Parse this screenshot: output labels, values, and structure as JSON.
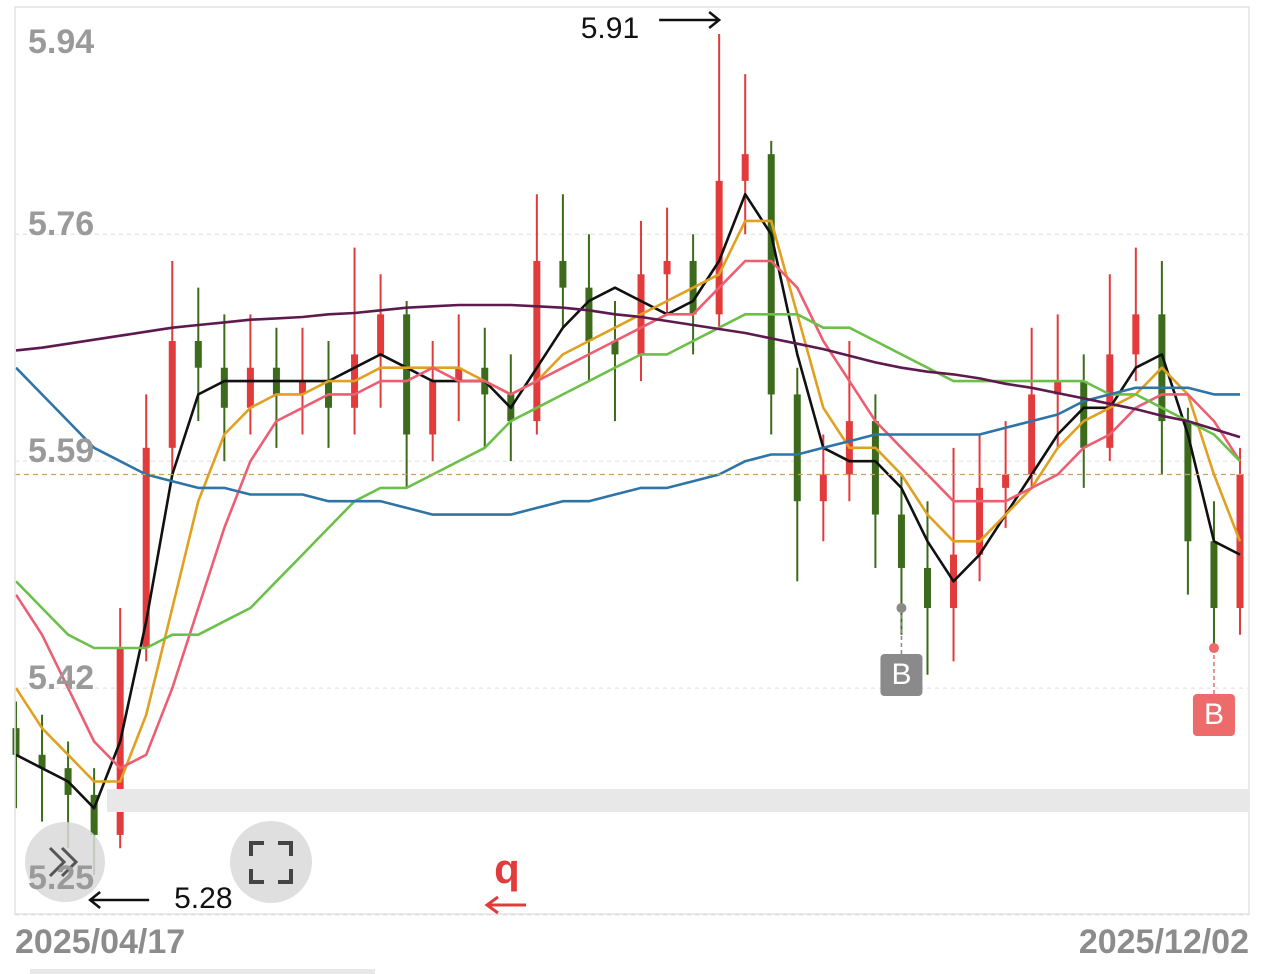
{
  "chart_data": {
    "type": "candlestick",
    "categories": [
      "2025/04/17",
      null,
      null,
      null,
      null,
      null,
      null,
      null,
      null,
      null,
      null,
      null,
      null,
      null,
      null,
      null,
      null,
      null,
      null,
      null,
      null,
      null,
      null,
      null,
      null,
      null,
      null,
      null,
      null,
      null,
      null,
      null,
      null,
      null,
      null,
      null,
      null,
      null,
      null,
      null,
      null,
      null,
      null,
      null,
      null,
      null,
      null,
      "2025/12/02"
    ],
    "open": [
      5.39,
      5.37,
      5.36,
      5.34,
      5.31,
      5.45,
      5.6,
      5.68,
      5.66,
      5.63,
      5.66,
      5.64,
      5.65,
      5.63,
      5.67,
      5.7,
      5.61,
      5.65,
      5.66,
      5.64,
      5.62,
      5.74,
      5.72,
      5.68,
      5.67,
      5.73,
      5.74,
      5.7,
      5.8,
      5.82,
      5.64,
      5.56,
      5.58,
      5.62,
      5.55,
      5.51,
      5.48,
      5.52,
      5.57,
      5.58,
      5.64,
      5.65,
      5.6,
      5.67,
      5.7,
      5.62,
      5.53,
      5.48
    ],
    "high": [
      5.41,
      5.4,
      5.38,
      5.36,
      5.48,
      5.64,
      5.74,
      5.72,
      5.7,
      5.7,
      5.69,
      5.69,
      5.68,
      5.75,
      5.73,
      5.71,
      5.68,
      5.7,
      5.69,
      5.67,
      5.79,
      5.79,
      5.76,
      5.71,
      5.77,
      5.78,
      5.76,
      5.91,
      5.88,
      5.83,
      5.66,
      5.61,
      5.68,
      5.64,
      5.58,
      5.56,
      5.6,
      5.61,
      5.62,
      5.69,
      5.7,
      5.67,
      5.73,
      5.75,
      5.74,
      5.63,
      5.56,
      5.6
    ],
    "low": [
      5.33,
      5.32,
      5.3,
      5.28,
      5.3,
      5.44,
      5.58,
      5.62,
      5.59,
      5.61,
      5.6,
      5.61,
      5.6,
      5.61,
      5.63,
      5.57,
      5.59,
      5.62,
      5.6,
      5.59,
      5.61,
      5.69,
      5.65,
      5.62,
      5.65,
      5.7,
      5.67,
      5.69,
      5.76,
      5.61,
      5.5,
      5.53,
      5.56,
      5.51,
      5.46,
      5.43,
      5.44,
      5.5,
      5.54,
      5.57,
      5.6,
      5.57,
      5.59,
      5.65,
      5.58,
      5.49,
      5.45,
      5.46
    ],
    "close": [
      5.37,
      5.36,
      5.34,
      5.31,
      5.45,
      5.6,
      5.68,
      5.66,
      5.63,
      5.66,
      5.64,
      5.65,
      5.63,
      5.67,
      5.7,
      5.61,
      5.65,
      5.66,
      5.64,
      5.62,
      5.74,
      5.72,
      5.68,
      5.67,
      5.73,
      5.74,
      5.7,
      5.8,
      5.82,
      5.64,
      5.56,
      5.58,
      5.62,
      5.55,
      5.51,
      5.48,
      5.52,
      5.57,
      5.58,
      5.64,
      5.65,
      5.6,
      5.67,
      5.7,
      5.62,
      5.53,
      5.48,
      5.58
    ],
    "up_color": "#e23b3b",
    "down_color": "#3c6b1c",
    "series": [
      {
        "color": "#111111",
        "values": [
          5.37,
          5.36,
          5.35,
          5.33,
          5.38,
          5.47,
          5.58,
          5.64,
          5.65,
          5.65,
          5.65,
          5.65,
          5.65,
          5.66,
          5.67,
          5.66,
          5.65,
          5.65,
          5.65,
          5.63,
          5.66,
          5.69,
          5.71,
          5.72,
          5.71,
          5.7,
          5.71,
          5.74,
          5.79,
          5.76,
          5.67,
          5.6,
          5.59,
          5.59,
          5.57,
          5.53,
          5.5,
          5.52,
          5.55,
          5.58,
          5.61,
          5.63,
          5.63,
          5.66,
          5.67,
          5.61,
          5.53,
          5.52
        ]
      },
      {
        "color": "#e0a020",
        "values": [
          5.42,
          5.39,
          5.37,
          5.35,
          5.35,
          5.4,
          5.48,
          5.56,
          5.61,
          5.63,
          5.64,
          5.64,
          5.65,
          5.65,
          5.66,
          5.66,
          5.66,
          5.66,
          5.65,
          5.64,
          5.65,
          5.67,
          5.68,
          5.69,
          5.7,
          5.71,
          5.72,
          5.73,
          5.77,
          5.77,
          5.7,
          5.63,
          5.6,
          5.6,
          5.58,
          5.55,
          5.53,
          5.53,
          5.55,
          5.57,
          5.6,
          5.62,
          5.63,
          5.64,
          5.66,
          5.64,
          5.58,
          5.53
        ]
      },
      {
        "color": "#ec5f72",
        "values": [
          5.49,
          5.46,
          5.42,
          5.38,
          5.36,
          5.37,
          5.42,
          5.48,
          5.54,
          5.59,
          5.62,
          5.63,
          5.64,
          5.64,
          5.65,
          5.65,
          5.66,
          5.65,
          5.65,
          5.64,
          5.65,
          5.66,
          5.67,
          5.68,
          5.69,
          5.7,
          5.7,
          5.72,
          5.74,
          5.74,
          5.72,
          5.68,
          5.65,
          5.62,
          5.6,
          5.58,
          5.56,
          5.56,
          5.56,
          5.57,
          5.58,
          5.6,
          5.61,
          5.63,
          5.64,
          5.64,
          5.62,
          5.59
        ]
      },
      {
        "color": "#6cc04a",
        "values": [
          5.5,
          5.48,
          5.46,
          5.45,
          5.45,
          5.45,
          5.46,
          5.46,
          5.47,
          5.48,
          5.5,
          5.52,
          5.54,
          5.56,
          5.57,
          5.57,
          5.58,
          5.59,
          5.6,
          5.62,
          5.63,
          5.64,
          5.65,
          5.66,
          5.67,
          5.67,
          5.68,
          5.69,
          5.7,
          5.7,
          5.7,
          5.69,
          5.69,
          5.68,
          5.67,
          5.66,
          5.65,
          5.65,
          5.65,
          5.65,
          5.65,
          5.65,
          5.64,
          5.64,
          5.63,
          5.62,
          5.61,
          5.59
        ]
      },
      {
        "color": "#2f74a6",
        "values": [
          5.66,
          5.64,
          5.62,
          5.6,
          5.59,
          5.58,
          5.575,
          5.57,
          5.57,
          5.565,
          5.565,
          5.565,
          5.56,
          5.56,
          5.56,
          5.555,
          5.55,
          5.55,
          5.55,
          5.55,
          5.555,
          5.56,
          5.56,
          5.565,
          5.57,
          5.57,
          5.575,
          5.58,
          5.59,
          5.595,
          5.595,
          5.6,
          5.605,
          5.61,
          5.61,
          5.61,
          5.61,
          5.61,
          5.615,
          5.62,
          5.625,
          5.635,
          5.64,
          5.645,
          5.645,
          5.645,
          5.64,
          5.64
        ]
      },
      {
        "color": "#5e1a4e",
        "values": [
          5.673,
          5.675,
          5.678,
          5.681,
          5.684,
          5.687,
          5.69,
          5.692,
          5.694,
          5.696,
          5.697,
          5.698,
          5.7,
          5.701,
          5.703,
          5.705,
          5.706,
          5.707,
          5.707,
          5.707,
          5.706,
          5.705,
          5.703,
          5.7,
          5.698,
          5.695,
          5.692,
          5.689,
          5.686,
          5.682,
          5.678,
          5.674,
          5.669,
          5.664,
          5.66,
          5.657,
          5.655,
          5.652,
          5.648,
          5.645,
          5.641,
          5.637,
          5.633,
          5.629,
          5.624,
          5.62,
          5.614,
          5.608
        ]
      }
    ],
    "markers": [
      {
        "label": "B",
        "index": 34,
        "price": 5.48,
        "color": "#8a8a8a"
      },
      {
        "label": "B",
        "index": 46,
        "price": 5.45,
        "color": "#ee6b6b"
      }
    ],
    "ylim": [
      5.25,
      5.94
    ],
    "yticks": [
      5.94,
      5.76,
      5.59,
      5.42,
      5.25
    ],
    "grid": true
  },
  "ui": {
    "shortcut_label": "q"
  }
}
